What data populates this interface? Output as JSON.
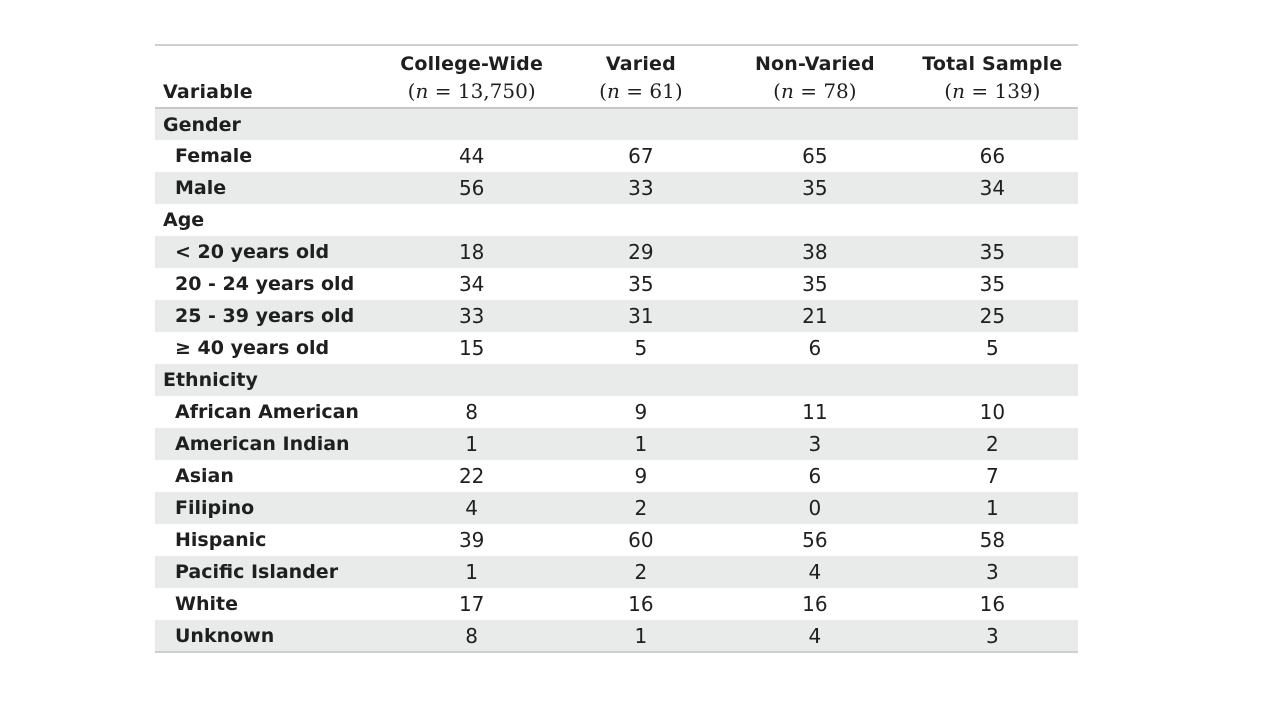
{
  "table": {
    "columns": [
      {
        "label": "Variable",
        "n": ""
      },
      {
        "label": "College-Wide",
        "n": "13,750"
      },
      {
        "label": "Varied",
        "n": "61"
      },
      {
        "label": "Non-Varied",
        "n": "78"
      },
      {
        "label": "Total Sample",
        "n": "139"
      }
    ],
    "n_symbol": "n",
    "n_equals": " = ",
    "sections": [
      {
        "label": "Gender",
        "rows": [
          {
            "label": "Female",
            "values": [
              "44",
              "67",
              "65",
              "66"
            ]
          },
          {
            "label": "Male",
            "values": [
              "56",
              "33",
              "35",
              "34"
            ]
          }
        ]
      },
      {
        "label": "Age",
        "rows": [
          {
            "label": "<  20 years old",
            "values": [
              "18",
              "29",
              "38",
              "35"
            ]
          },
          {
            "label": "20 - 24 years old",
            "values": [
              "34",
              "35",
              "35",
              "35"
            ]
          },
          {
            "label": "25 - 39 years old",
            "values": [
              "33",
              "31",
              "21",
              "25"
            ]
          },
          {
            "label": "≥ 40 years old",
            "values": [
              "15",
              "5",
              "6",
              "5"
            ]
          }
        ]
      },
      {
        "label": "Ethnicity",
        "rows": [
          {
            "label": "African American",
            "values": [
              "8",
              "9",
              "11",
              "10"
            ]
          },
          {
            "label": "American Indian",
            "values": [
              "1",
              "1",
              "3",
              "2"
            ]
          },
          {
            "label": "Asian",
            "values": [
              "22",
              "9",
              "6",
              "7"
            ]
          },
          {
            "label": "Filipino",
            "values": [
              "4",
              "2",
              "0",
              "1"
            ]
          },
          {
            "label": "Hispanic",
            "values": [
              "39",
              "60",
              "56",
              "58"
            ]
          },
          {
            "label": "Pacific Islander",
            "values": [
              "1",
              "2",
              "4",
              "3"
            ]
          },
          {
            "label": "White",
            "values": [
              "17",
              "16",
              "16",
              "16"
            ]
          },
          {
            "label": "Unknown",
            "values": [
              "8",
              "1",
              "4",
              "3"
            ]
          }
        ]
      }
    ]
  }
}
